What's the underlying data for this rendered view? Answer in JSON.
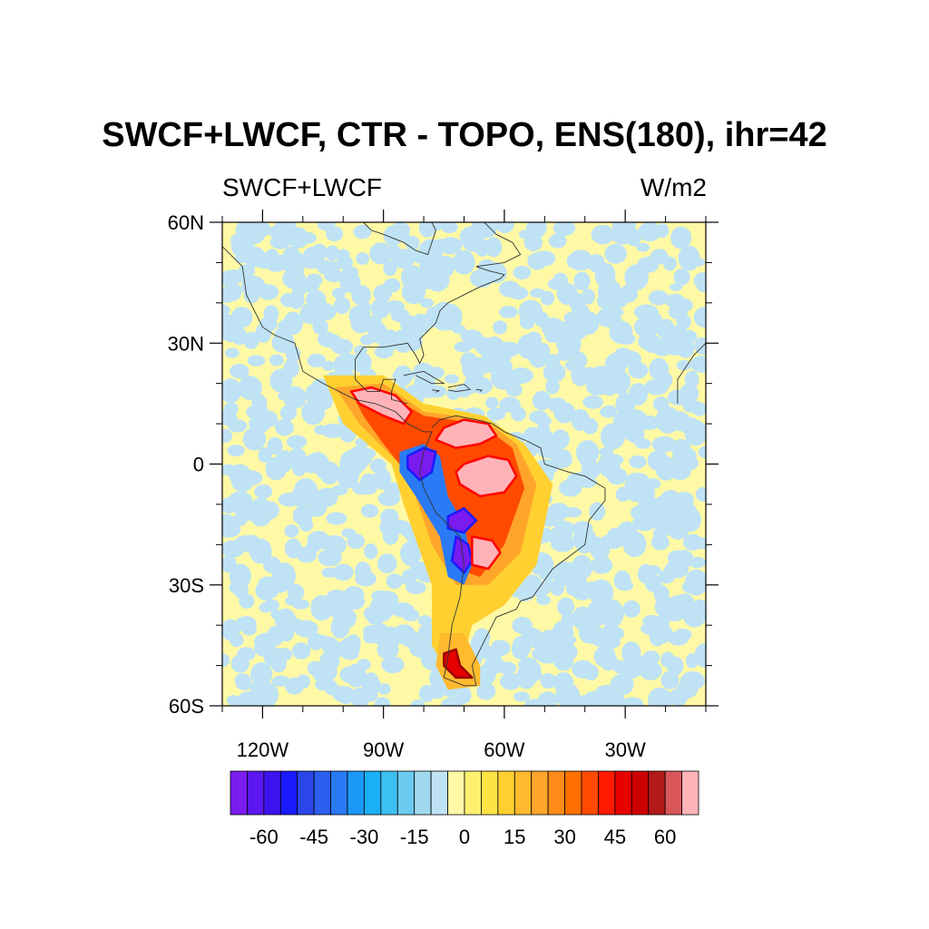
{
  "title": "SWCF+LWCF, CTR - TOPO, ENS(180), ihr=42",
  "left_subtitle": "SWCF+LWCF",
  "right_subtitle": "W/m2",
  "map": {
    "projection": "cylindrical-equidistant",
    "lon_range": [
      -130,
      -10
    ],
    "lat_range": [
      -60,
      60
    ],
    "lat_ticks": [
      {
        "lat": 60,
        "label": "60N"
      },
      {
        "lat": 30,
        "label": "30N"
      },
      {
        "lat": 0,
        "label": "0"
      },
      {
        "lat": -30,
        "label": "30S"
      },
      {
        "lat": -60,
        "label": "60S"
      }
    ],
    "lon_ticks": [
      {
        "lon": -120,
        "label": "120W"
      },
      {
        "lon": -90,
        "label": "90W"
      },
      {
        "lon": -60,
        "label": "60W"
      },
      {
        "lon": -30,
        "label": "30W"
      }
    ],
    "background_colors": [
      "#fff9a6",
      "#bfe3f5"
    ],
    "features": [
      {
        "name": "central-america-positive",
        "level": 75,
        "color": "#ffb3b8",
        "edge": "#ff0000",
        "pts": [
          [
            -98,
            18
          ],
          [
            -93,
            19
          ],
          [
            -87,
            17
          ],
          [
            -83,
            13
          ],
          [
            -85,
            10
          ],
          [
            -90,
            12
          ],
          [
            -96,
            15
          ]
        ]
      },
      {
        "name": "northern-sa-positive",
        "level": 75,
        "color": "#ffb3b8",
        "edge": "#ff0000",
        "pts": [
          [
            -75,
            9
          ],
          [
            -70,
            11
          ],
          [
            -64,
            10
          ],
          [
            -62,
            7
          ],
          [
            -66,
            5
          ],
          [
            -72,
            4
          ],
          [
            -77,
            6
          ]
        ]
      },
      {
        "name": "amazon-positive",
        "level": 75,
        "color": "#ffb3b8",
        "edge": "#ff0000",
        "pts": [
          [
            -70,
            0
          ],
          [
            -64,
            2
          ],
          [
            -59,
            1
          ],
          [
            -57,
            -3
          ],
          [
            -60,
            -7
          ],
          [
            -66,
            -8
          ],
          [
            -71,
            -5
          ],
          [
            -72,
            -2
          ]
        ]
      },
      {
        "name": "andes-negative-north",
        "level": -70,
        "color": "#7a1bf0",
        "edge": "#1a1aff",
        "pts": [
          [
            -84,
            2
          ],
          [
            -80,
            4
          ],
          [
            -77,
            3
          ],
          [
            -78,
            -2
          ],
          [
            -81,
            -4
          ],
          [
            -84,
            -1
          ]
        ]
      },
      {
        "name": "andes-negative-central",
        "level": -70,
        "color": "#7a1bf0",
        "edge": "#1a1aff",
        "pts": [
          [
            -74,
            -13
          ],
          [
            -70,
            -11
          ],
          [
            -67,
            -14
          ],
          [
            -70,
            -17
          ],
          [
            -74,
            -16
          ]
        ]
      },
      {
        "name": "andes-negative-south",
        "level": -70,
        "color": "#7a1bf0",
        "edge": "#1a1aff",
        "pts": [
          [
            -72,
            -18
          ],
          [
            -69,
            -20
          ],
          [
            -68,
            -24
          ],
          [
            -70,
            -27
          ],
          [
            -73,
            -24
          ]
        ]
      },
      {
        "name": "altiplano-positive",
        "level": 75,
        "color": "#ffb3b8",
        "edge": "#ff0000",
        "pts": [
          [
            -68,
            -18
          ],
          [
            -63,
            -19
          ],
          [
            -61,
            -22
          ],
          [
            -64,
            -26
          ],
          [
            -68,
            -25
          ]
        ]
      },
      {
        "name": "patagonia-positive",
        "level": 60,
        "color": "#e60000",
        "edge": "#990000",
        "pts": [
          [
            -75,
            -47
          ],
          [
            -72,
            -46
          ],
          [
            -71,
            -50
          ],
          [
            -68,
            -53
          ],
          [
            -72,
            -53
          ],
          [
            -75,
            -50
          ]
        ]
      }
    ]
  },
  "colorbar": {
    "colors": [
      "#7a1bf0",
      "#5b17f0",
      "#3c13f0",
      "#1a1aff",
      "#2a45e8",
      "#2c5ff0",
      "#2a7af5",
      "#1c98f8",
      "#1ab0f8",
      "#3cc0f0",
      "#6ccbf0",
      "#a0d8ee",
      "#bfe3f5",
      "#fff9a6",
      "#fff070",
      "#ffe246",
      "#ffd030",
      "#ffba2e",
      "#ffa52a",
      "#ff8c1a",
      "#ff7000",
      "#ff4a00",
      "#ff1a00",
      "#e60000",
      "#cc0000",
      "#b31a1a",
      "#d9575a",
      "#ffb3b8"
    ],
    "labels": [
      "-60",
      "-45",
      "-30",
      "-15",
      "0",
      "15",
      "30",
      "45",
      "60"
    ],
    "label_values": [
      -60,
      -45,
      -30,
      -15,
      0,
      15,
      30,
      45,
      60
    ],
    "min": -75,
    "max": 75,
    "step": 5
  }
}
